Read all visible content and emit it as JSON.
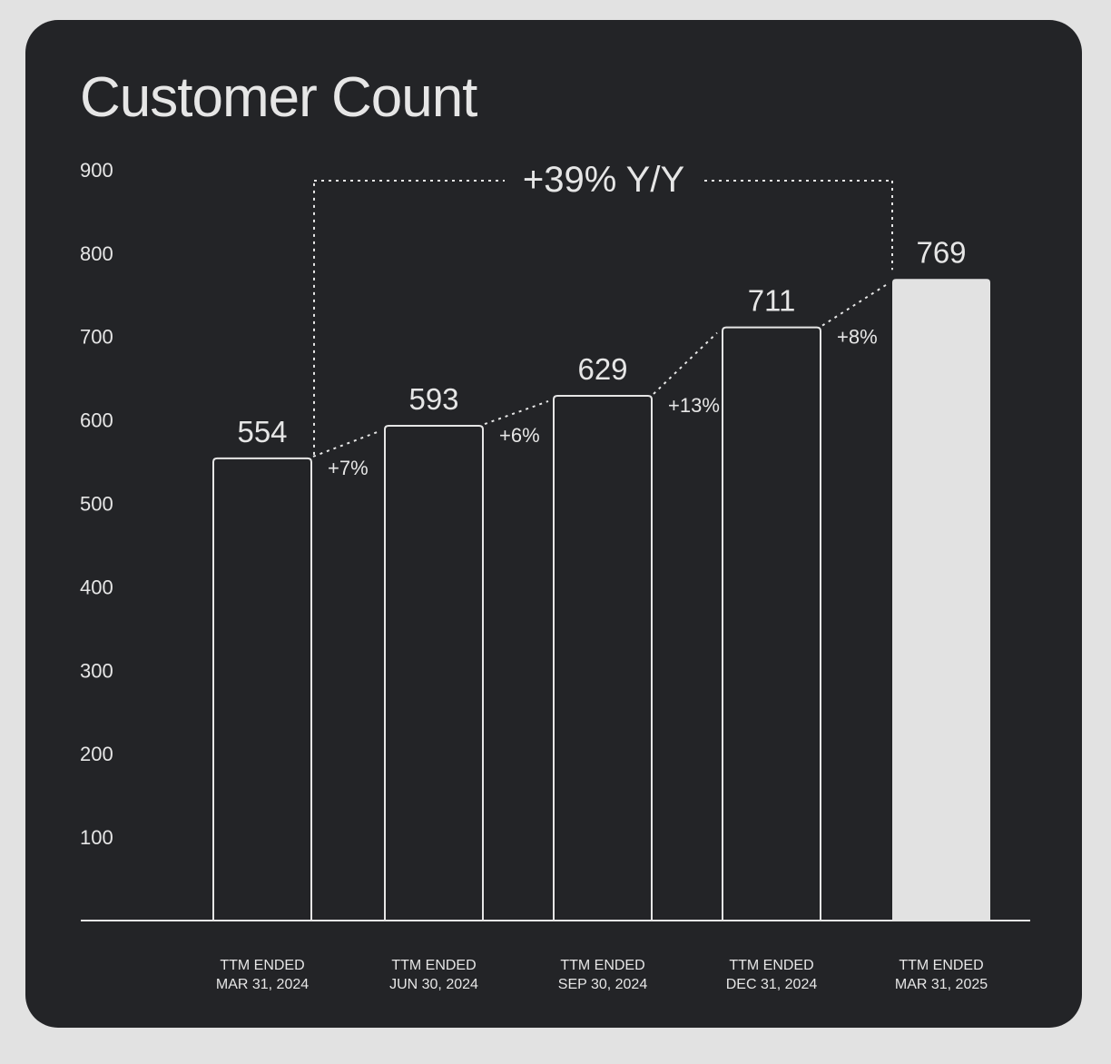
{
  "colors": {
    "background": "#e2e2e2",
    "card": "#232427",
    "foreground": "#e6e6e6",
    "highlight_bar": "#e2e2e2"
  },
  "chart_data": {
    "type": "bar",
    "title": "Customer Count",
    "xlabel": "",
    "ylabel": "",
    "ylim": [
      0,
      900
    ],
    "yticks": [
      100,
      200,
      300,
      400,
      500,
      600,
      700,
      800,
      900
    ],
    "grid": false,
    "categories": [
      [
        "TTM ENDED",
        "MAR 31, 2024"
      ],
      [
        "TTM ENDED",
        "JUN 30, 2024"
      ],
      [
        "TTM ENDED",
        "SEP 30, 2024"
      ],
      [
        "TTM ENDED",
        "DEC 31, 2024"
      ],
      [
        "TTM ENDED",
        "MAR 31, 2025"
      ]
    ],
    "values": [
      554,
      593,
      629,
      711,
      769
    ],
    "value_labels": [
      "554",
      "593",
      "629",
      "711",
      "769"
    ],
    "growth_labels": [
      "+7%",
      "+6%",
      "+13%",
      "+8%"
    ],
    "yoy_label": "+39% Y/Y",
    "highlighted_index": 4
  }
}
